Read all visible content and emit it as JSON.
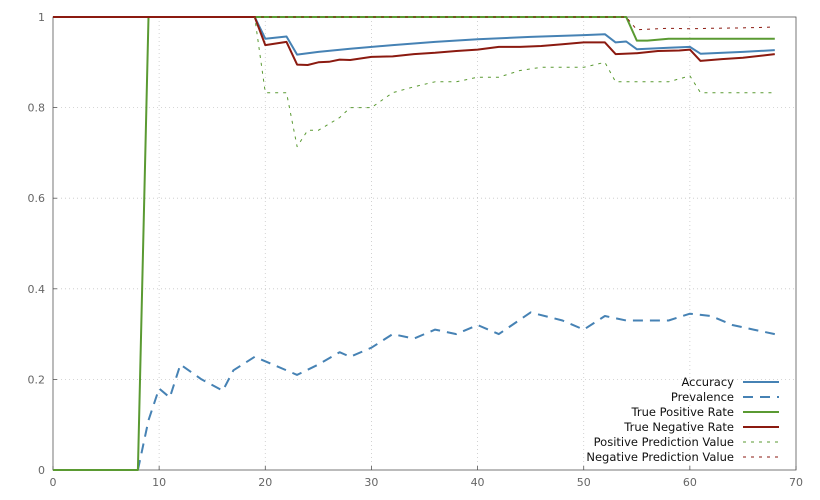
{
  "chart_data": {
    "type": "line",
    "title": "",
    "xlabel": "",
    "ylabel": "",
    "xlim": [
      0,
      70
    ],
    "ylim": [
      0,
      1
    ],
    "xticks": [
      0,
      10,
      20,
      30,
      40,
      50,
      60,
      70
    ],
    "yticks": [
      0,
      0.2,
      0.4,
      0.6,
      0.8,
      1
    ],
    "grid": true,
    "legend_position": "bottom-right",
    "series": [
      {
        "name": "Accuracy",
        "color": "#4682b4",
        "style": "solid",
        "x": [
          0,
          19,
          20,
          22,
          23,
          25,
          28,
          32,
          36,
          40,
          45,
          50,
          52,
          53,
          54,
          55,
          58,
          60,
          61,
          65,
          68
        ],
        "y": [
          1,
          1,
          0.952,
          0.957,
          0.917,
          0.923,
          0.93,
          0.938,
          0.945,
          0.951,
          0.956,
          0.96,
          0.962,
          0.944,
          0.946,
          0.929,
          0.932,
          0.934,
          0.919,
          0.923,
          0.927
        ]
      },
      {
        "name": "Prevalence",
        "color": "#4682b4",
        "style": "dashed",
        "x": [
          0,
          8,
          9,
          10,
          11,
          12,
          14,
          16,
          17,
          19,
          20,
          23,
          25,
          27,
          28,
          30,
          32,
          34,
          36,
          38,
          40,
          42,
          45,
          48,
          50,
          52,
          54,
          56,
          58,
          60,
          62,
          64,
          66,
          68
        ],
        "y": [
          0,
          0,
          0.11,
          0.18,
          0.16,
          0.233,
          0.2,
          0.175,
          0.22,
          0.25,
          0.24,
          0.21,
          0.233,
          0.26,
          0.25,
          0.27,
          0.3,
          0.29,
          0.31,
          0.3,
          0.32,
          0.3,
          0.348,
          0.33,
          0.31,
          0.34,
          0.33,
          0.33,
          0.33,
          0.345,
          0.34,
          0.32,
          0.31,
          0.3
        ]
      },
      {
        "name": "True Positive Rate",
        "color": "#5a9a32",
        "style": "solid",
        "x": [
          0,
          8,
          9,
          54,
          55,
          56,
          58,
          60,
          65,
          68
        ],
        "y": [
          0,
          0,
          1,
          1,
          0.948,
          0.948,
          0.952,
          0.952,
          0.952,
          0.952
        ]
      },
      {
        "name": "True Negative Rate",
        "color": "#8b1a10",
        "style": "solid",
        "x": [
          0,
          19,
          20,
          22,
          23,
          24,
          25,
          26,
          27,
          28,
          30,
          32,
          34,
          36,
          38,
          40,
          42,
          44,
          46,
          48,
          50,
          52,
          53,
          55,
          57,
          59,
          60,
          61,
          63,
          65,
          68
        ],
        "y": [
          1,
          1,
          0.938,
          0.945,
          0.895,
          0.894,
          0.9,
          0.901,
          0.906,
          0.905,
          0.912,
          0.913,
          0.918,
          0.921,
          0.925,
          0.928,
          0.934,
          0.934,
          0.936,
          0.94,
          0.944,
          0.944,
          0.918,
          0.92,
          0.925,
          0.926,
          0.928,
          0.903,
          0.907,
          0.91,
          0.918
        ]
      },
      {
        "name": "Positive Prediction Value",
        "color": "#5a9a32",
        "style": "dotted",
        "x": [
          0,
          19,
          20,
          22,
          23,
          24,
          25,
          27,
          28,
          30,
          32,
          34,
          36,
          38,
          40,
          42,
          44,
          46,
          48,
          50,
          52,
          53,
          55,
          58,
          60,
          61,
          63,
          65,
          68
        ],
        "y": [
          1,
          1,
          0.833,
          0.833,
          0.714,
          0.75,
          0.75,
          0.778,
          0.8,
          0.8,
          0.833,
          0.846,
          0.857,
          0.857,
          0.867,
          0.867,
          0.882,
          0.889,
          0.889,
          0.889,
          0.9,
          0.857,
          0.857,
          0.857,
          0.87,
          0.833,
          0.833,
          0.833,
          0.833
        ]
      },
      {
        "name": "Negative Prediction Value",
        "color": "#8b1a10",
        "style": "dotted",
        "x": [
          0,
          54,
          55,
          58,
          60,
          62,
          65,
          68
        ],
        "y": [
          1,
          1,
          0.972,
          0.975,
          0.974,
          0.975,
          0.976,
          0.978
        ]
      }
    ]
  }
}
